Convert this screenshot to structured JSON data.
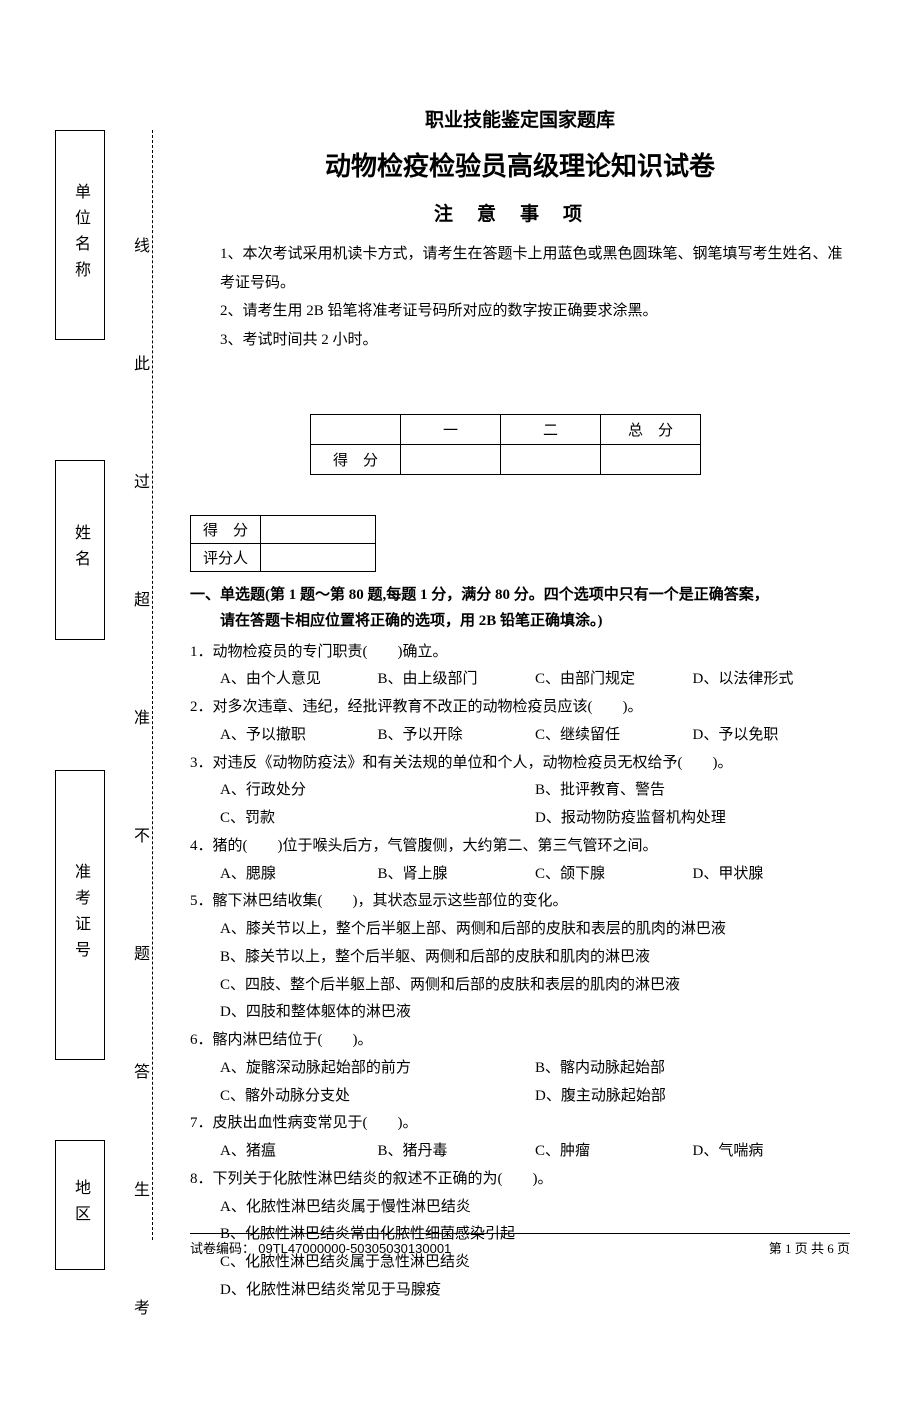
{
  "sideboxes": {
    "unit": "单位名称",
    "name": "姓名",
    "examno": "准考证号",
    "area": "地区"
  },
  "dashed_chars": [
    "线",
    "此",
    "过",
    "超",
    "准",
    "不",
    "题",
    "答",
    "生",
    "考"
  ],
  "header": {
    "sub": "职业技能鉴定国家题库",
    "main": "动物检疫检验员高级理论知识试卷",
    "notice_title": "注意事项"
  },
  "notices": [
    "1、本次考试采用机读卡方式，请考生在答题卡上用蓝色或黑色圆珠笔、钢笔填写考生姓名、准考证号码。",
    "2、请考生用 2B 铅笔将准考证号码所对应的数字按正确要求涂黑。",
    "3、考试时间共 2 小时。"
  ],
  "score_table": {
    "cols": [
      "",
      "一",
      "二",
      "总　分"
    ],
    "row_label": "得　分"
  },
  "eval_table": {
    "r1": "得　分",
    "r2": "评分人"
  },
  "section1": {
    "line1": "一、单选题(第 1 题～第 80 题,每题 1 分，满分 80 分。四个选项中只有一个是正确答案，",
    "line2": "请在答题卡相应位置将正确的选项，用 2B 铅笔正确填涂。)"
  },
  "questions": [
    {
      "num": "1．",
      "stem": "动物检疫员的专门职责(　　)确立。",
      "layout": "grid4",
      "opts": [
        "A、由个人意见",
        "B、由上级部门",
        "C、由部门规定",
        "D、以法律形式"
      ]
    },
    {
      "num": "2．",
      "stem": "对多次违章、违纪，经批评教育不改正的动物检疫员应该(　　)。",
      "layout": "grid4",
      "opts": [
        "A、予以撤职",
        "B、予以开除",
        "C、继续留任",
        "D、予以免职"
      ]
    },
    {
      "num": "3．",
      "stem": "对违反《动物防疫法》和有关法规的单位和个人，动物检疫员无权给予(　　)。",
      "layout": "grid2",
      "opts": [
        "A、行政处分",
        "B、批评教育、警告",
        "C、罚款",
        "D、报动物防疫监督机构处理"
      ]
    },
    {
      "num": "4．",
      "stem": "猪的(　　)位于喉头后方，气管腹侧，大约第二、第三气管环之间。",
      "layout": "grid4",
      "opts": [
        "A、腮腺",
        "B、肾上腺",
        "C、颌下腺",
        "D、甲状腺"
      ]
    },
    {
      "num": "5．",
      "stem": "髂下淋巴结收集(　　)，其状态显示这些部位的变化。",
      "layout": "grid1",
      "opts": [
        "A、膝关节以上，整个后半躯上部、两侧和后部的皮肤和表层的肌肉的淋巴液",
        "B、膝关节以上，整个后半躯、两侧和后部的皮肤和肌肉的淋巴液",
        "C、四肢、整个后半躯上部、两侧和后部的皮肤和表层的肌肉的淋巴液",
        "D、四肢和整体躯体的淋巴液"
      ]
    },
    {
      "num": "6．",
      "stem": "髂内淋巴结位于(　　)。",
      "layout": "grid2",
      "opts": [
        "A、旋髂深动脉起始部的前方",
        "B、髂内动脉起始部",
        "C、髂外动脉分支处",
        "D、腹主动脉起始部"
      ]
    },
    {
      "num": "7．",
      "stem": "皮肤出血性病变常见于(　　)。",
      "layout": "grid4",
      "opts": [
        "A、猪瘟",
        "B、猪丹毒",
        "C、肿瘤",
        "D、气喘病"
      ]
    },
    {
      "num": "8．",
      "stem": "下列关于化脓性淋巴结炎的叙述不正确的为(　　)。",
      "layout": "grid1",
      "opts": [
        "A、化脓性淋巴结炎属于慢性淋巴结炎",
        "B、化脓性淋巴结炎常由化脓性细菌感染引起",
        "C、化脓性淋巴结炎属于急性淋巴结炎",
        "D、化脓性淋巴结炎常见于马腺疫"
      ]
    }
  ],
  "footer": {
    "left_label": "试卷编码：",
    "code": "09TL47000000-50305030130001",
    "right": "第 1 页   共 6 页"
  }
}
